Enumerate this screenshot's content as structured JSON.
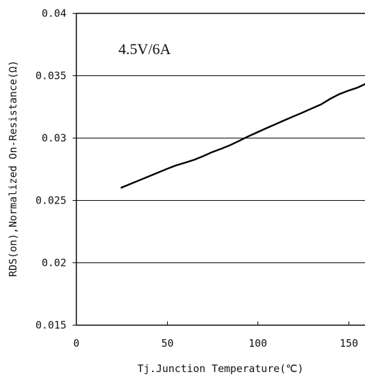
{
  "chart_data": {
    "type": "line",
    "title": "",
    "xlabel": "Tj.Junction Temperature(℃)",
    "ylabel": "RDS(on),Normalized On-Resistance(Ω)",
    "annotation": "4.5V/6A",
    "xlim": [
      0,
      160
    ],
    "ylim": [
      0.015,
      0.04
    ],
    "x_ticks": [
      0,
      50,
      100,
      150
    ],
    "x_tick_labels": [
      "0",
      "50",
      "100",
      "150"
    ],
    "y_ticks": [
      0.015,
      0.02,
      0.025,
      0.03,
      0.035,
      0.04
    ],
    "y_tick_labels": [
      "0.015",
      "0.02",
      "0.025",
      "0.03",
      "0.035",
      "0.04"
    ],
    "grid": "horizontal",
    "series": [
      {
        "values_x": [
          25,
          35,
          45,
          50,
          55,
          60,
          65,
          70,
          75,
          80,
          85,
          90,
          95,
          100,
          105,
          110,
          115,
          120,
          125,
          130,
          135,
          140,
          145,
          150,
          155,
          160
        ],
        "values_y": [
          0.026,
          0.0266,
          0.0272,
          0.0275,
          0.02778,
          0.028,
          0.02823,
          0.02852,
          0.02885,
          0.02912,
          0.02942,
          0.02977,
          0.03012,
          0.03045,
          0.03078,
          0.0311,
          0.03142,
          0.03173,
          0.03204,
          0.03236,
          0.03268,
          0.03313,
          0.0335,
          0.03378,
          0.03402,
          0.0343
        ]
      }
    ],
    "colors": {
      "line": "#000000",
      "grid": "#000000",
      "axis": "#000000"
    }
  }
}
